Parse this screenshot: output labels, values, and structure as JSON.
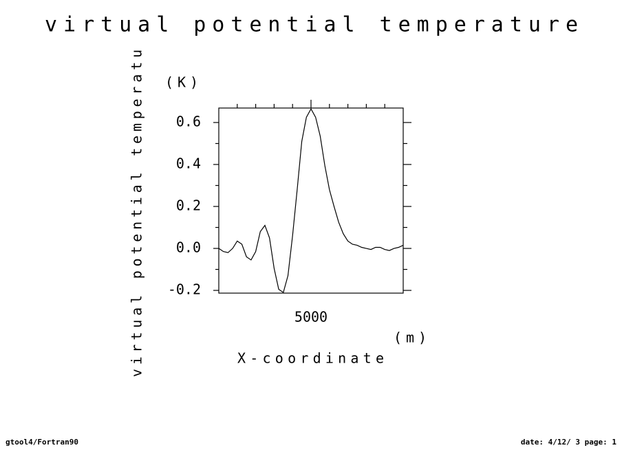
{
  "chart_data": {
    "type": "line",
    "title": "virtual potential temperature",
    "y_label": "virtual potential temperatu",
    "y_unit": "(K)",
    "x_label": "X-coordinate",
    "x_unit": "(m)",
    "x": [
      0,
      250,
      500,
      750,
      1000,
      1250,
      1500,
      1750,
      2000,
      2250,
      2500,
      2750,
      3000,
      3250,
      3500,
      3750,
      4000,
      4250,
      4500,
      4750,
      5000,
      5250,
      5500,
      5750,
      6000,
      6250,
      6500,
      6750,
      7000,
      7250,
      7500,
      7750,
      8000,
      8250,
      8500,
      8750,
      9000,
      9250,
      9500,
      9750,
      10000
    ],
    "series": [
      {
        "color": "#000000",
        "values": [
          0.0,
          -0.015,
          -0.02,
          0.0,
          0.035,
          0.02,
          -0.04,
          -0.055,
          -0.015,
          0.08,
          0.11,
          0.05,
          -0.095,
          -0.195,
          -0.21,
          -0.13,
          0.06,
          0.28,
          0.51,
          0.625,
          0.665,
          0.625,
          0.535,
          0.395,
          0.28,
          0.2,
          0.125,
          0.07,
          0.035,
          0.02,
          0.015,
          0.005,
          0.0,
          -0.005,
          0.005,
          0.005,
          -0.005,
          -0.01,
          0.0,
          0.005,
          0.015
        ]
      }
    ],
    "xlim": [
      0,
      10000
    ],
    "xticks": [
      5000
    ],
    "x_minor_ticks": [
      1000,
      2000,
      3000,
      4000,
      6000,
      7000,
      8000,
      9000
    ],
    "ylim": [
      -0.213,
      0.669
    ],
    "yticks": [
      0.6,
      0.4,
      0.2,
      {
        "value": 0,
        "label": "0.0"
      },
      -0.2
    ],
    "y_minor_ticks": [
      0.5,
      0.3,
      0.1,
      -0.1
    ],
    "grid": false
  },
  "footer": {
    "left": "gtool4/Fortran90",
    "right": "date: 4/12/ 3 page: 1"
  }
}
